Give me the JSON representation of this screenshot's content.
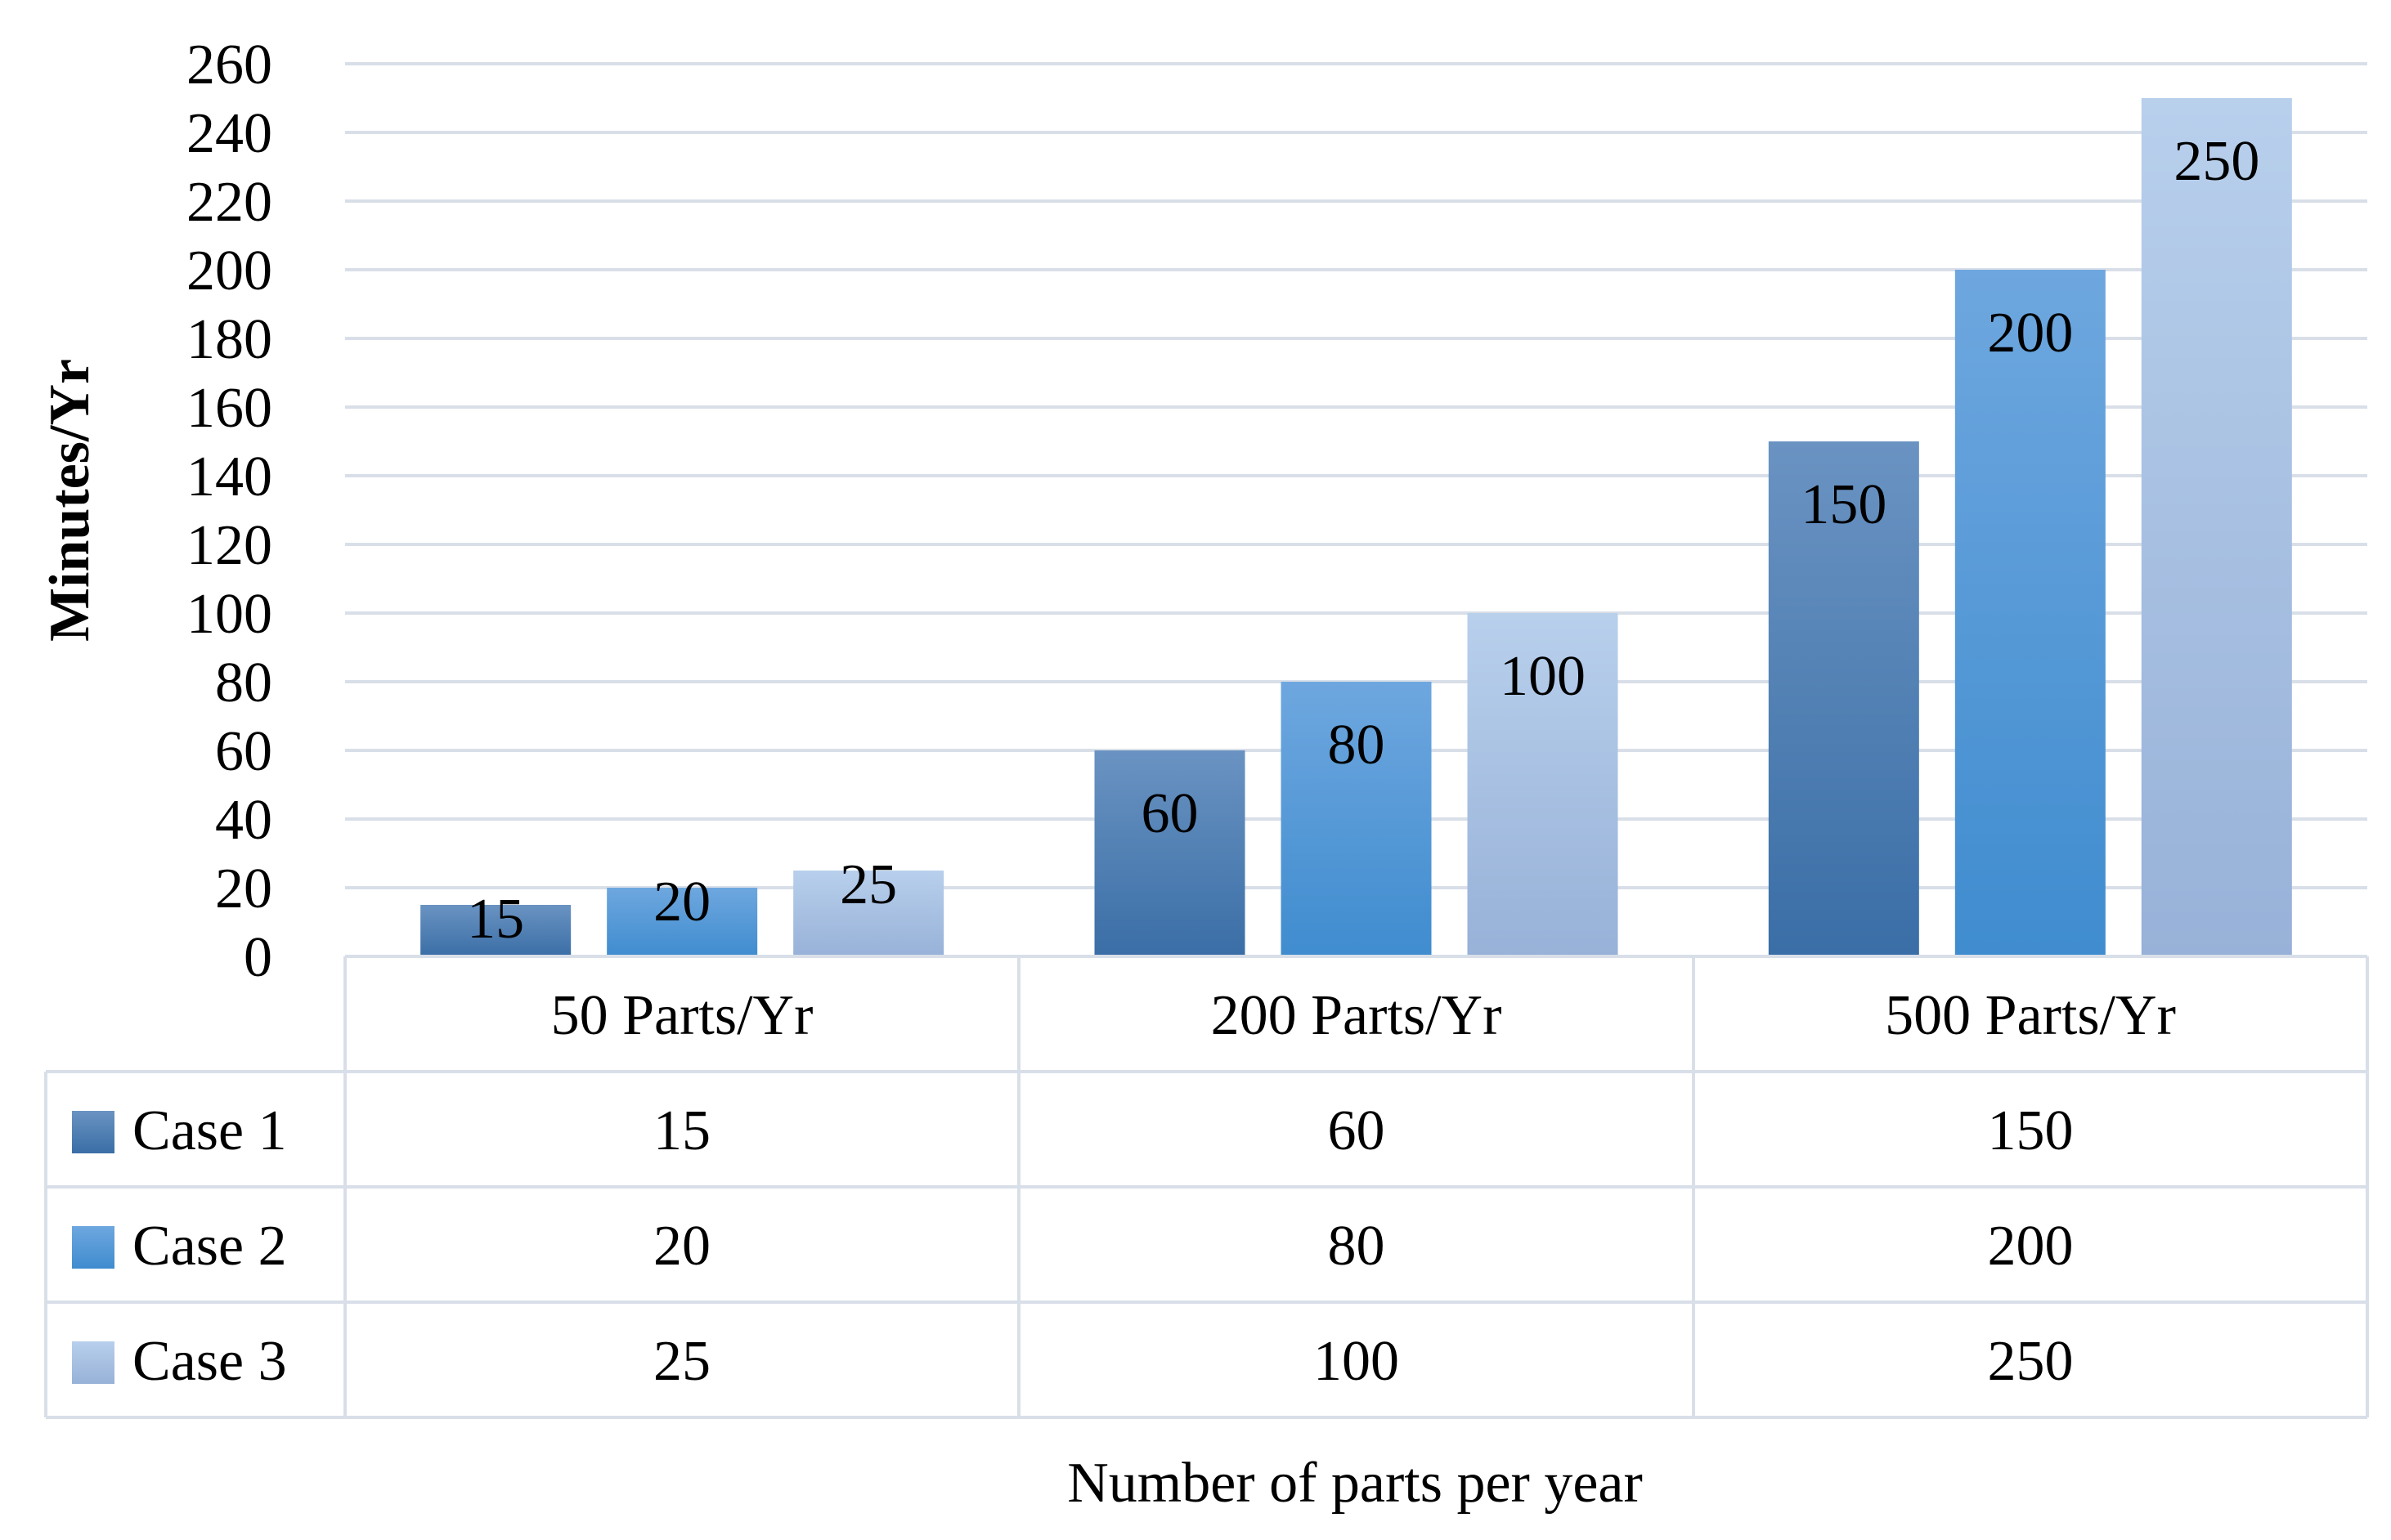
{
  "chart_data": {
    "type": "bar",
    "title": "",
    "xlabel": "Number of parts per year",
    "ylabel": "Minutes/Yr",
    "ylim": [
      0,
      260
    ],
    "yticks": [
      0,
      20,
      40,
      60,
      80,
      100,
      120,
      140,
      160,
      180,
      200,
      220,
      240,
      260
    ],
    "categories": [
      "50 Parts/Yr",
      "200 Parts/Yr",
      "500 Parts/Yr"
    ],
    "grid": true,
    "legend": "data table below chart",
    "series": [
      {
        "name": "Case 1",
        "values": [
          15,
          60,
          150
        ],
        "color_top": "#6a93c2",
        "color_bottom": "#3a6ea6"
      },
      {
        "name": "Case 2",
        "values": [
          20,
          80,
          200
        ],
        "color_top": "#6ea7df",
        "color_bottom": "#3f8ccf"
      },
      {
        "name": "Case 3",
        "values": [
          25,
          100,
          250
        ],
        "color_top": "#b8d0ec",
        "color_bottom": "#97b1d8"
      }
    ]
  }
}
